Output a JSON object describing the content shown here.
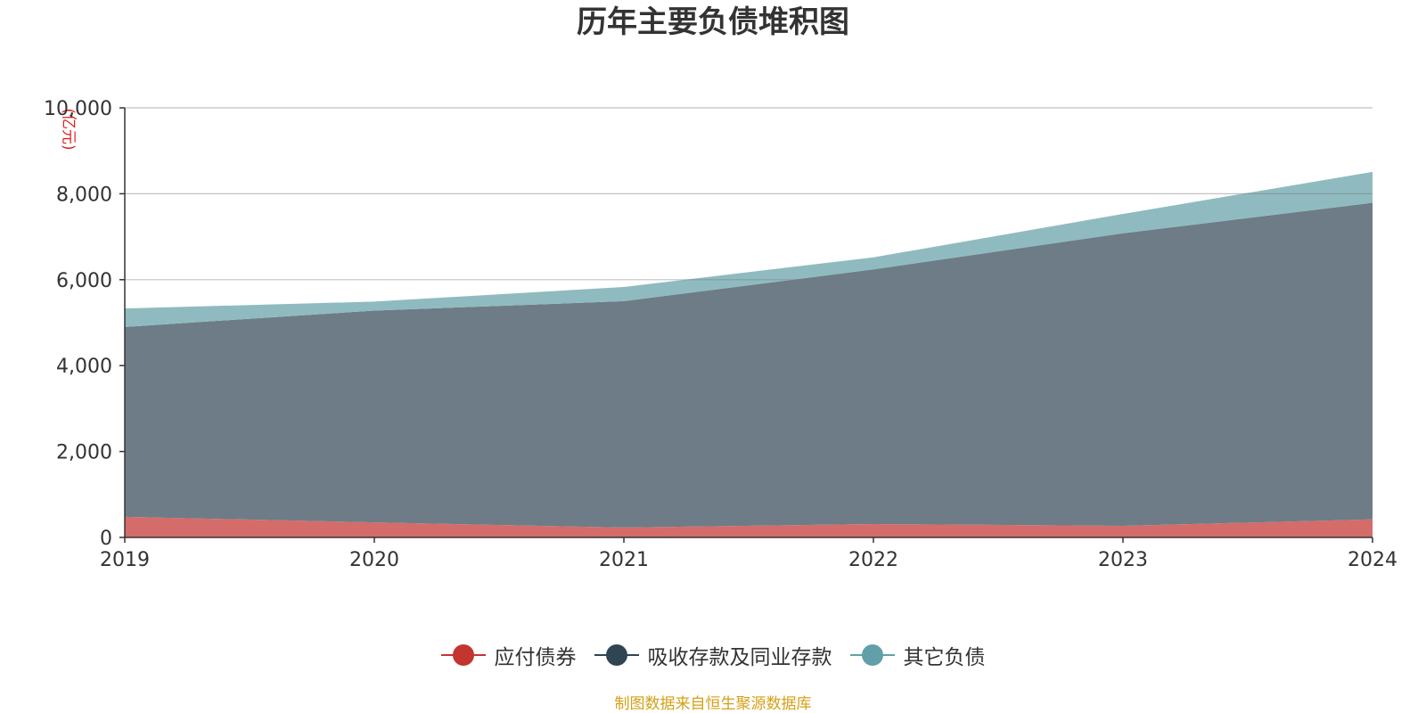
{
  "chart_data": {
    "type": "area",
    "stacked": true,
    "title": "历年主要负债堆积图",
    "y_unit": "(亿元)",
    "x": [
      "2019",
      "2020",
      "2021",
      "2022",
      "2023",
      "2024"
    ],
    "ylim": [
      0,
      10000
    ],
    "yticks": [
      0,
      2000,
      4000,
      6000,
      8000,
      10000
    ],
    "ytick_labels": [
      "0",
      "2,000",
      "4,000",
      "6,000",
      "8,000",
      "10,000"
    ],
    "grid": true,
    "legend_position": "bottom-center",
    "series": [
      {
        "name": "应付债券",
        "values": [
          480,
          350,
          230,
          310,
          270,
          420
        ],
        "color": "#c23531",
        "fill": "#d46c6a"
      },
      {
        "name": "吸收存款及同业存款",
        "values": [
          4420,
          4930,
          5270,
          5930,
          6810,
          7370
        ],
        "color": "#2f4554",
        "fill": "#6e7c87"
      },
      {
        "name": "其它负债",
        "values": [
          430,
          210,
          330,
          280,
          450,
          720
        ],
        "color": "#61a0a8",
        "fill": "#8fbbc0"
      }
    ]
  },
  "source_note": "制图数据来自恒生聚源数据库"
}
